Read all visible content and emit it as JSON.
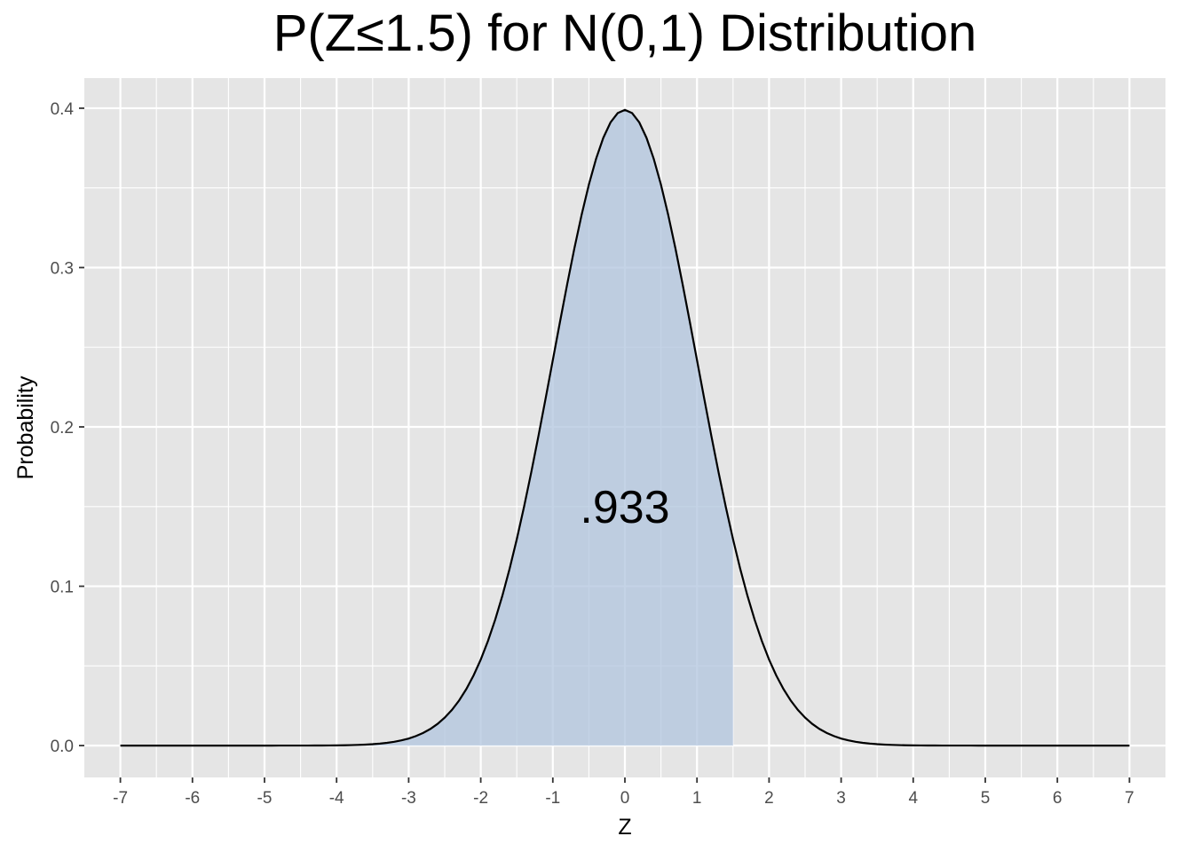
{
  "chart_data": {
    "type": "area",
    "title": "P(Z≤1.5) for N(0,1) Distribution",
    "xlabel": "Z",
    "ylabel": "Probability",
    "xlim": [
      -7.5,
      7.5
    ],
    "ylim": [
      -0.02,
      0.4189
    ],
    "x_ticks": [
      -7,
      -6,
      -5,
      -4,
      -3,
      -2,
      -1,
      0,
      1,
      2,
      3,
      4,
      5,
      6,
      7
    ],
    "x_tick_labels": [
      "-7",
      "-6",
      "-5",
      "-4",
      "-3",
      "-2",
      "-1",
      "0",
      "1",
      "2",
      "3",
      "4",
      "5",
      "6",
      "7"
    ],
    "y_ticks": [
      0,
      0.1,
      0.2,
      0.3,
      0.4
    ],
    "y_tick_labels": [
      "0.0",
      "0.1",
      "0.2",
      "0.3",
      "0.4"
    ],
    "grid": true,
    "series": [
      {
        "curve": "normal density, mean 0, sd 1",
        "x_range": [
          -7,
          7
        ],
        "line_color": "#000000",
        "fill_range": [
          -7,
          1.5
        ],
        "fill_color": "#b0c4de"
      }
    ],
    "annotation": {
      "text": ".933",
      "x": 0,
      "y": 0.15
    },
    "colors": {
      "panel": "#e5e5e5",
      "grid": "#ffffff",
      "fill": "#b0c4de",
      "line": "#000000"
    }
  }
}
